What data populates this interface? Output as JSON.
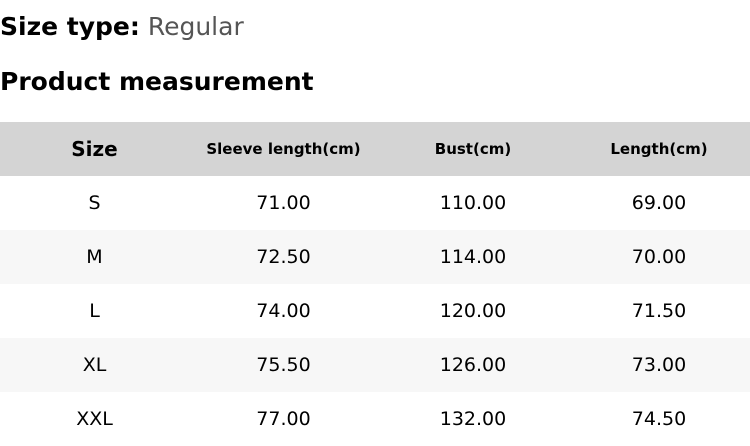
{
  "size_type": {
    "label": "Size type:",
    "value": "Regular"
  },
  "title": "Product measurement",
  "table": {
    "headers": [
      "Size",
      "Sleeve length(cm)",
      "Bust(cm)",
      "Length(cm)"
    ],
    "rows": [
      [
        "S",
        "71.00",
        "110.00",
        "69.00"
      ],
      [
        "M",
        "72.50",
        "114.00",
        "70.00"
      ],
      [
        "L",
        "74.00",
        "120.00",
        "71.50"
      ],
      [
        "XL",
        "75.50",
        "126.00",
        "73.00"
      ],
      [
        "XXL",
        "77.00",
        "132.00",
        "74.50"
      ]
    ]
  }
}
